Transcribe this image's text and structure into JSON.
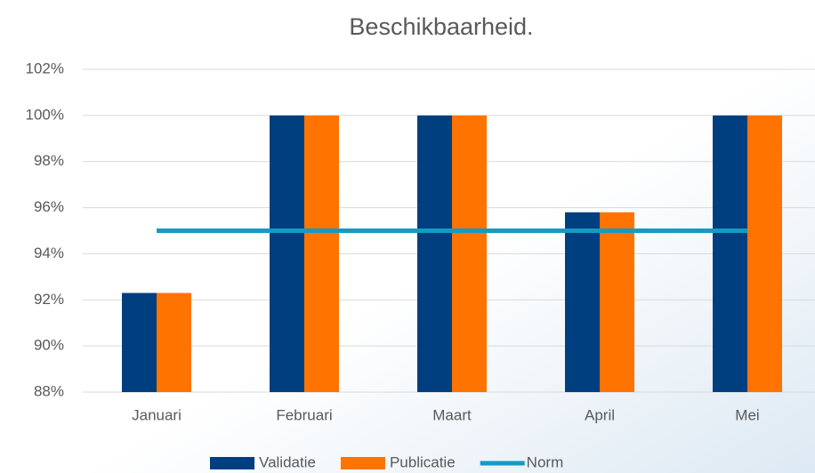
{
  "chart_data": {
    "type": "bar",
    "title": "Beschikbaarheid.",
    "categories": [
      "Januari",
      "Februari",
      "Maart",
      "April",
      "Mei"
    ],
    "series": [
      {
        "name": "Validatie",
        "type": "bar",
        "color": "#003f7f",
        "values": [
          92.3,
          100,
          100,
          95.8,
          100
        ]
      },
      {
        "name": "Publicatie",
        "type": "bar",
        "color": "#ff7300",
        "values": [
          92.3,
          100,
          100,
          95.8,
          100
        ]
      },
      {
        "name": "Norm",
        "type": "line",
        "color": "#159ac3",
        "values": [
          95,
          95,
          95,
          95,
          95
        ]
      }
    ],
    "ylim": [
      88,
      102
    ],
    "yticks": [
      {
        "value": 88,
        "label": "88%"
      },
      {
        "value": 90,
        "label": "90%"
      },
      {
        "value": 92,
        "label": "92%"
      },
      {
        "value": 94,
        "label": "94%"
      },
      {
        "value": 96,
        "label": "96%"
      },
      {
        "value": 98,
        "label": "98%"
      },
      {
        "value": 100,
        "label": "100%"
      },
      {
        "value": 102,
        "label": "102%"
      }
    ],
    "grid": true,
    "legend": "bottom"
  }
}
